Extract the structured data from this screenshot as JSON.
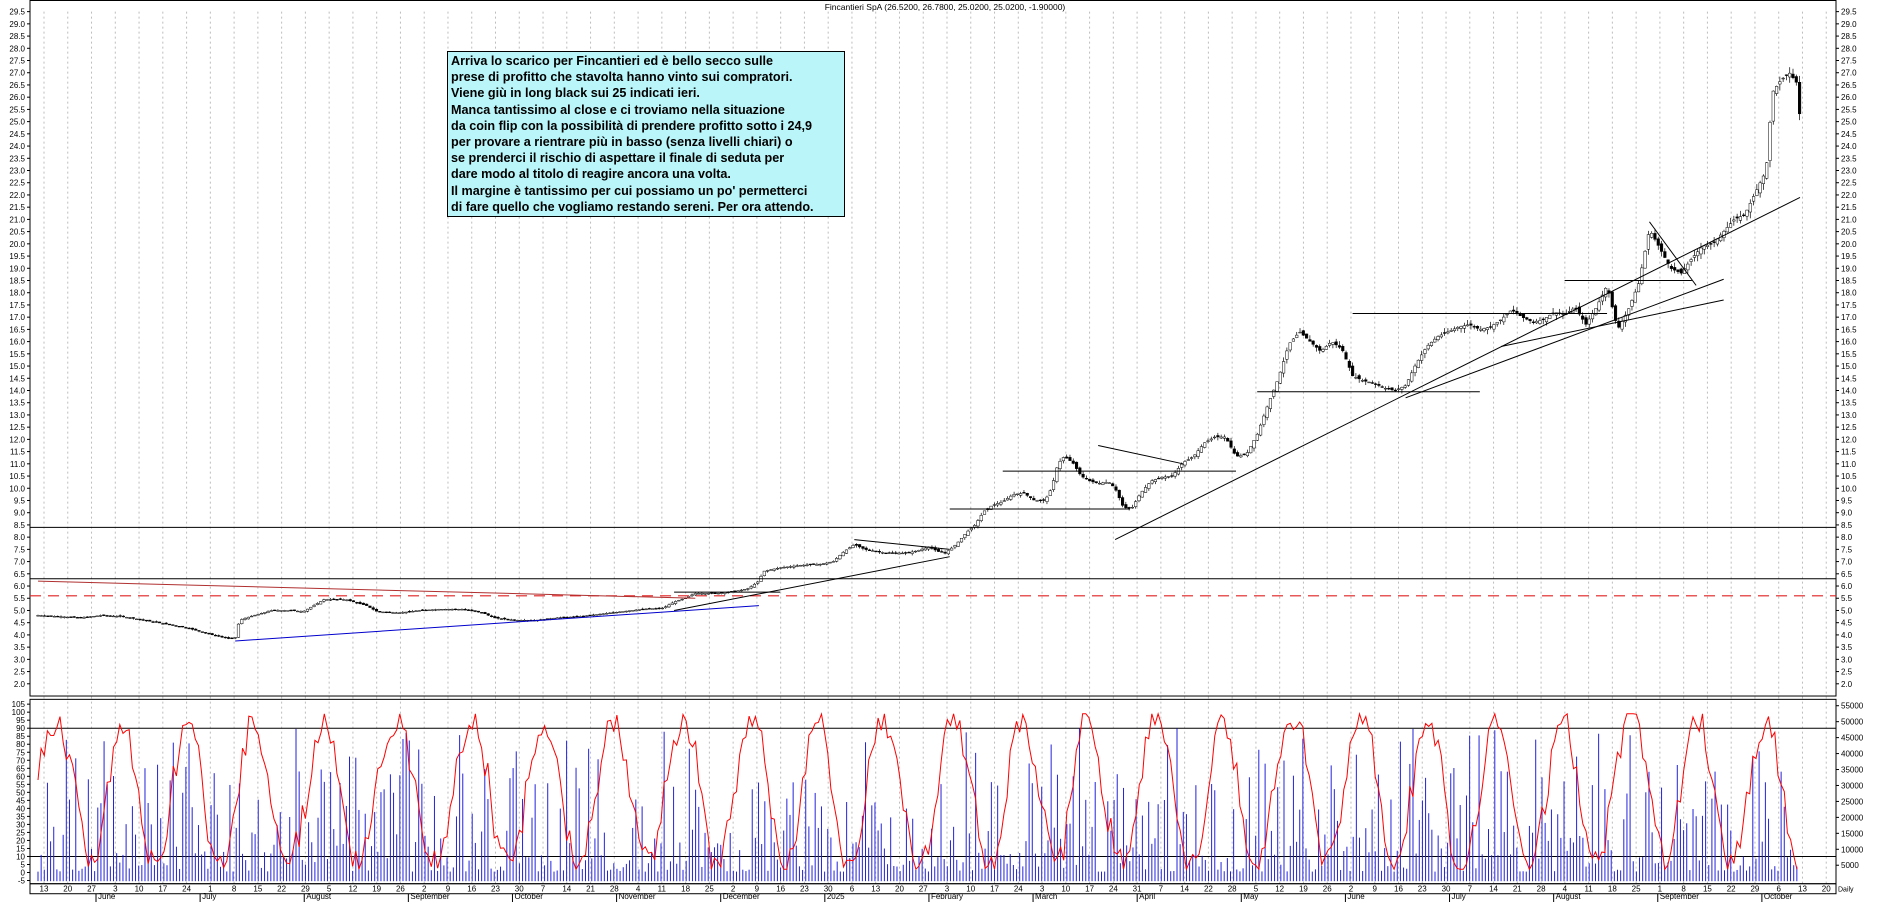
{
  "chart_data": [
    {
      "type": "candlestick",
      "title": "Fincantieri SpA (26.5200, 26.7800, 25.0200, 25.0200, -1.90000)",
      "ylim": [
        1.5,
        29.5
      ],
      "yticks": [
        2.0,
        2.5,
        3.0,
        3.5,
        4.0,
        4.5,
        5.0,
        5.5,
        6.0,
        6.5,
        7.0,
        7.5,
        8.0,
        8.5,
        9.0,
        9.5,
        10.0,
        10.5,
        11.0,
        11.5,
        12.0,
        12.5,
        13.0,
        13.5,
        14.0,
        14.5,
        15.0,
        15.5,
        16.0,
        16.5,
        17.0,
        17.5,
        18.0,
        18.5,
        19.0,
        19.5,
        20.0,
        20.5,
        21.0,
        21.5,
        22.0,
        22.5,
        23.0,
        23.5,
        24.0,
        24.5,
        25.0,
        25.5,
        26.0,
        26.5,
        27.0,
        27.5,
        28.0,
        28.5,
        29.0,
        29.5
      ],
      "price_path": [
        [
          0,
          4.8
        ],
        [
          10,
          4.75
        ],
        [
          20,
          4.7
        ],
        [
          30,
          4.8
        ],
        [
          40,
          4.75
        ],
        [
          50,
          4.6
        ],
        [
          60,
          4.45
        ],
        [
          70,
          4.3
        ],
        [
          80,
          4.05
        ],
        [
          90,
          3.85
        ],
        [
          93,
          3.9
        ],
        [
          95,
          4.6
        ],
        [
          100,
          4.75
        ],
        [
          110,
          5.0
        ],
        [
          120,
          5.0
        ],
        [
          125,
          4.95
        ],
        [
          135,
          5.45
        ],
        [
          145,
          5.45
        ],
        [
          155,
          5.2
        ],
        [
          160,
          4.95
        ],
        [
          170,
          4.9
        ],
        [
          180,
          5.0
        ],
        [
          190,
          5.05
        ],
        [
          200,
          5.05
        ],
        [
          210,
          4.9
        ],
        [
          215,
          4.7
        ],
        [
          225,
          4.6
        ],
        [
          235,
          4.6
        ],
        [
          245,
          4.7
        ],
        [
          255,
          4.75
        ],
        [
          265,
          4.85
        ],
        [
          275,
          4.95
        ],
        [
          285,
          5.05
        ],
        [
          295,
          5.1
        ],
        [
          300,
          5.35
        ],
        [
          305,
          5.5
        ],
        [
          310,
          5.7
        ],
        [
          320,
          5.7
        ],
        [
          330,
          5.8
        ],
        [
          335,
          5.9
        ],
        [
          340,
          6.2
        ],
        [
          342,
          6.6
        ],
        [
          350,
          6.75
        ],
        [
          360,
          6.85
        ],
        [
          370,
          6.9
        ],
        [
          375,
          7.0
        ],
        [
          380,
          7.4
        ],
        [
          385,
          7.7
        ],
        [
          390,
          7.5
        ],
        [
          400,
          7.35
        ],
        [
          410,
          7.35
        ],
        [
          415,
          7.45
        ],
        [
          420,
          7.6
        ],
        [
          425,
          7.4
        ],
        [
          428,
          7.35
        ],
        [
          433,
          7.7
        ],
        [
          438,
          8.2
        ],
        [
          442,
          8.5
        ],
        [
          446,
          9.05
        ],
        [
          450,
          9.3
        ],
        [
          455,
          9.45
        ],
        [
          460,
          9.75
        ],
        [
          465,
          9.8
        ],
        [
          470,
          9.5
        ],
        [
          475,
          9.5
        ],
        [
          478,
          10.0
        ],
        [
          481,
          11.0
        ],
        [
          484,
          11.3
        ],
        [
          488,
          11.05
        ],
        [
          492,
          10.5
        ],
        [
          496,
          10.3
        ],
        [
          500,
          10.2
        ],
        [
          505,
          10.25
        ],
        [
          508,
          10.0
        ],
        [
          512,
          9.2
        ],
        [
          516,
          9.2
        ],
        [
          520,
          9.8
        ],
        [
          525,
          10.3
        ],
        [
          530,
          10.45
        ],
        [
          535,
          10.5
        ],
        [
          540,
          11.05
        ],
        [
          545,
          11.3
        ],
        [
          550,
          11.85
        ],
        [
          555,
          12.1
        ],
        [
          560,
          12.1
        ],
        [
          565,
          11.3
        ],
        [
          570,
          11.4
        ],
        [
          575,
          12.2
        ],
        [
          580,
          13.4
        ],
        [
          585,
          14.5
        ],
        [
          590,
          15.9
        ],
        [
          595,
          16.4
        ],
        [
          600,
          16.0
        ],
        [
          605,
          15.6
        ],
        [
          610,
          16.0
        ],
        [
          615,
          15.7
        ],
        [
          620,
          14.6
        ],
        [
          625,
          14.4
        ],
        [
          630,
          14.3
        ],
        [
          635,
          14.1
        ],
        [
          640,
          14.0
        ],
        [
          645,
          14.2
        ],
        [
          650,
          15.1
        ],
        [
          655,
          15.8
        ],
        [
          660,
          16.2
        ],
        [
          665,
          16.4
        ],
        [
          670,
          16.6
        ],
        [
          675,
          16.7
        ],
        [
          680,
          16.5
        ],
        [
          685,
          16.6
        ],
        [
          690,
          16.9
        ],
        [
          695,
          17.3
        ],
        [
          700,
          17.0
        ],
        [
          705,
          16.8
        ],
        [
          710,
          16.9
        ],
        [
          715,
          17.2
        ],
        [
          720,
          17.1
        ],
        [
          725,
          17.4
        ],
        [
          730,
          16.7
        ],
        [
          735,
          17.4
        ],
        [
          740,
          18.3
        ],
        [
          745,
          16.5
        ],
        [
          750,
          17.3
        ],
        [
          755,
          18.4
        ],
        [
          760,
          20.6
        ],
        [
          765,
          19.8
        ],
        [
          770,
          19.0
        ],
        [
          775,
          18.8
        ],
        [
          780,
          19.4
        ],
        [
          785,
          19.9
        ],
        [
          790,
          20.0
        ],
        [
          795,
          20.5
        ],
        [
          800,
          21.0
        ],
        [
          805,
          21.2
        ],
        [
          810,
          22.1
        ],
        [
          815,
          23.0
        ],
        [
          818,
          26.2
        ],
        [
          822,
          26.7
        ],
        [
          826,
          27.0
        ],
        [
          830,
          26.52
        ],
        [
          831,
          25.02
        ]
      ],
      "horizontal_lines": [
        8.4,
        6.3
      ],
      "dashed_line": 5.6,
      "trendlines": [
        {
          "from": [
            0,
            6.2
          ],
          "to": [
            310,
            5.5
          ],
          "color": "#b03030"
        },
        {
          "from": [
            93,
            3.75
          ],
          "to": [
            340,
            5.2
          ],
          "color": "#0000cc"
        },
        {
          "from": [
            300,
            5.0
          ],
          "to": [
            430,
            7.2
          ],
          "color": "#000000"
        },
        {
          "from": [
            385,
            7.9
          ],
          "to": [
            430,
            7.5
          ],
          "color": "#000000"
        },
        {
          "from": [
            500,
            11.75
          ],
          "to": [
            540,
            11.0
          ],
          "color": "#000000"
        },
        {
          "from": [
            508,
            7.9
          ],
          "to": [
            831,
            21.9
          ],
          "color": "#000000"
        },
        {
          "from": [
            645,
            13.7
          ],
          "to": [
            795,
            18.55
          ],
          "color": "#000000"
        },
        {
          "from": [
            690,
            15.8
          ],
          "to": [
            795,
            17.7
          ],
          "color": "#000000"
        },
        {
          "from": [
            760,
            20.9
          ],
          "to": [
            782,
            18.3
          ],
          "color": "#000000"
        }
      ],
      "resistance_segments": [
        {
          "from": [
            300,
            5.75
          ],
          "to": [
            350,
            5.75
          ]
        },
        {
          "from": [
            430,
            9.15
          ],
          "to": [
            515,
            9.15
          ]
        },
        {
          "from": [
            455,
            10.7
          ],
          "to": [
            565,
            10.7
          ]
        },
        {
          "from": [
            575,
            13.95
          ],
          "to": [
            680,
            13.95
          ]
        },
        {
          "from": [
            620,
            17.15
          ],
          "to": [
            740,
            17.15
          ]
        },
        {
          "from": [
            720,
            18.5
          ],
          "to": [
            780,
            18.5
          ]
        }
      ]
    },
    {
      "type": "oscillator-volume",
      "left_axis": {
        "ylim": [
          -7,
          108
        ],
        "ticks": [
          -5,
          0,
          5,
          10,
          15,
          20,
          25,
          30,
          35,
          40,
          45,
          50,
          55,
          60,
          65,
          70,
          75,
          80,
          85,
          90,
          95,
          100,
          105
        ]
      },
      "right_axis": {
        "ylim": [
          -800,
          57000
        ],
        "ticks": [
          "5000",
          "10000",
          "15000",
          "20000",
          "25000",
          "30000",
          "35000",
          "40000",
          "45000",
          "50000",
          "55000"
        ]
      },
      "levels": [
        90,
        10
      ],
      "oscillator_color": "#ff0000",
      "volume_color": "#2222dd",
      "bar_count": 560
    }
  ],
  "x_axis": {
    "day_ticks": [
      "13",
      "20",
      "27",
      "3",
      "10",
      "17",
      "24",
      "1",
      "8",
      "15",
      "22",
      "29",
      "5",
      "12",
      "19",
      "26",
      "2",
      "9",
      "16",
      "23",
      "30",
      "7",
      "14",
      "21",
      "28",
      "4",
      "11",
      "18",
      "25",
      "2",
      "9",
      "16",
      "23",
      "30",
      "6",
      "13",
      "20",
      "27",
      "3",
      "10",
      "17",
      "24",
      "3",
      "10",
      "17",
      "24",
      "31",
      "7",
      "14",
      "22",
      "28",
      "5",
      "12",
      "19",
      "26",
      "2",
      "9",
      "16",
      "23",
      "30",
      "7",
      "14",
      "21",
      "28",
      "4",
      "11",
      "18",
      "25",
      "1",
      "8",
      "15",
      "22",
      "29",
      "6",
      "13",
      "20"
    ],
    "month_labels": [
      "June",
      "July",
      "August",
      "September",
      "October",
      "November",
      "December",
      "2025",
      "February",
      "March",
      "April",
      "May",
      "June",
      "July",
      "August",
      "September",
      "October"
    ],
    "corner_label": "Daily"
  },
  "annotation": {
    "lines": [
      "Arriva lo scarico per Fincantieri ed è bello secco sulle",
      "prese di profitto che stavolta hanno vinto sui compratori.",
      "Viene giù in long black sui 25 indicati ieri.",
      "Manca tantissimo al close e ci troviamo nella situazione",
      "da coin flip con la possibilità di prendere profitto sotto i 24,9",
      "per provare a rientrare più in basso (senza livelli chiari) o",
      "se prenderci il rischio di aspettare il finale di seduta per",
      "dare modo al titolo di reagire ancora una volta.",
      "Il margine è tantissimo per cui possiamo un po' permetterci",
      "di fare quello che vogliamo restando sereni. Per ora attendo."
    ]
  },
  "colors": {
    "grid": "#bdbdbd",
    "frame": "#000000",
    "dashed": "#e02020",
    "note_bg": "#b9f5f9"
  }
}
